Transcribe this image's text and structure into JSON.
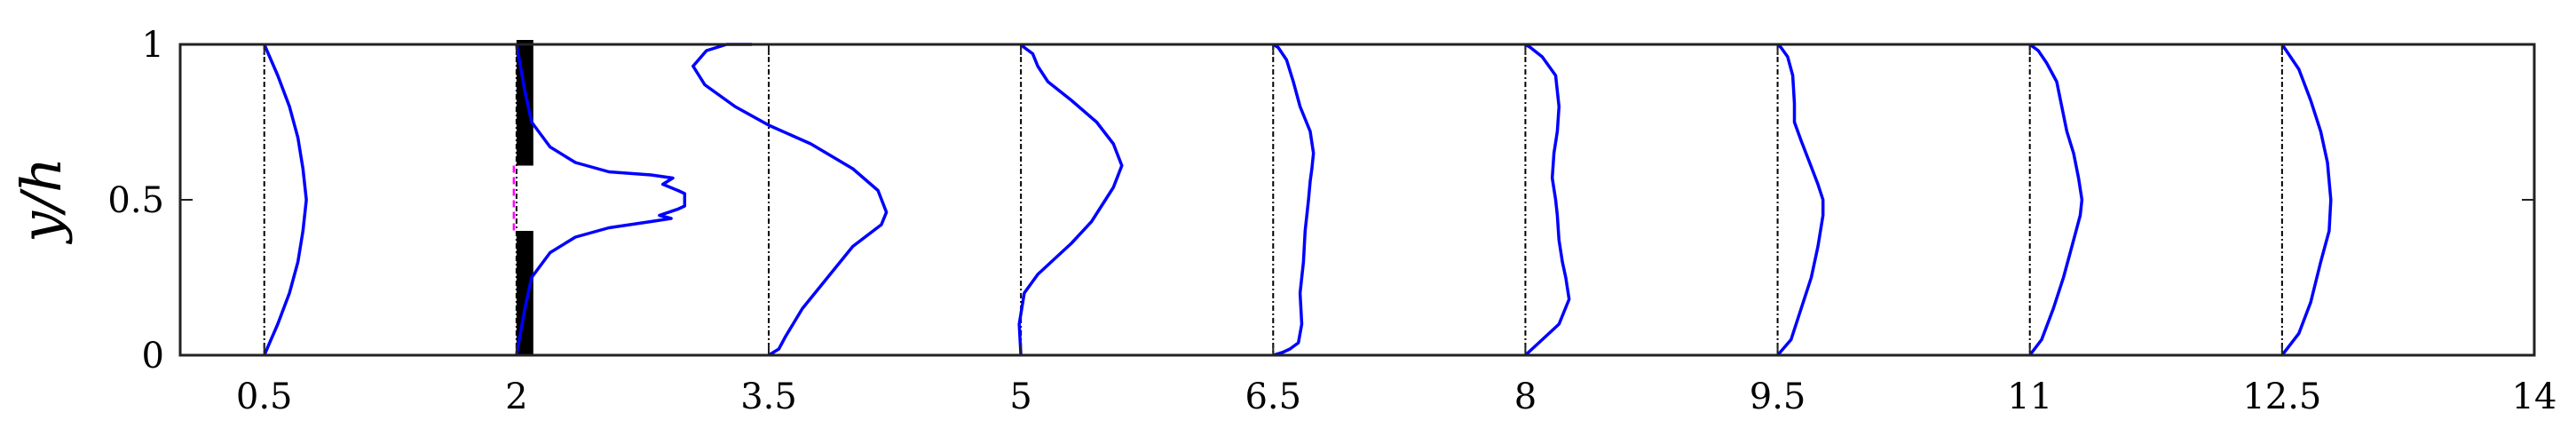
{
  "chart_data": {
    "type": "line",
    "title": "",
    "xlabel": "",
    "ylabel": "y/h",
    "xlim": [
      0,
      14
    ],
    "ylim": [
      0,
      1
    ],
    "xticks": [
      "0.5",
      "2",
      "3.5",
      "5",
      "6.5",
      "8",
      "9.5",
      "11",
      "12.5",
      "14"
    ],
    "yticks": [
      "0",
      "0.5",
      "1"
    ],
    "grid": false,
    "legend": "none",
    "colors": {
      "profile": "#0000ff",
      "reference": "#000000",
      "gap": "#ff00ff",
      "obstacle": "#000000"
    },
    "reference_lines_x": [
      0.5,
      2,
      3.5,
      5,
      6.5,
      8,
      9.5,
      11,
      12.5
    ],
    "obstacle": {
      "x": [
        2.0,
        2.1
      ],
      "lower_block_y": [
        0,
        0.4
      ],
      "upper_block_y": [
        0.61,
        1
      ],
      "gap_y": [
        0.4,
        0.61
      ]
    },
    "series": [
      {
        "station": "0.5",
        "points": [
          [
            0.5,
            0
          ],
          [
            0.58,
            0.1
          ],
          [
            0.65,
            0.2
          ],
          [
            0.7,
            0.3
          ],
          [
            0.73,
            0.4
          ],
          [
            0.75,
            0.5
          ],
          [
            0.73,
            0.6
          ],
          [
            0.7,
            0.7
          ],
          [
            0.65,
            0.8
          ],
          [
            0.58,
            0.9
          ],
          [
            0.5,
            1
          ]
        ]
      },
      {
        "station": "2",
        "points": [
          [
            2.0,
            0
          ],
          [
            2.05,
            0.15
          ],
          [
            2.09,
            0.25
          ],
          [
            2.2,
            0.33
          ],
          [
            2.35,
            0.38
          ],
          [
            2.55,
            0.41
          ],
          [
            2.8,
            0.43
          ],
          [
            2.92,
            0.44
          ],
          [
            2.85,
            0.45
          ],
          [
            2.96,
            0.47
          ],
          [
            3.0,
            0.48
          ],
          [
            3.0,
            0.5
          ],
          [
            3.0,
            0.52
          ],
          [
            2.96,
            0.53
          ],
          [
            2.87,
            0.55
          ],
          [
            2.93,
            0.57
          ],
          [
            2.8,
            0.58
          ],
          [
            2.55,
            0.59
          ],
          [
            2.35,
            0.62
          ],
          [
            2.2,
            0.67
          ],
          [
            2.09,
            0.75
          ],
          [
            2.05,
            0.85
          ],
          [
            2.0,
            1
          ]
        ]
      },
      {
        "station": "3.5",
        "points": [
          [
            3.5,
            0
          ],
          [
            3.56,
            0.02
          ],
          [
            3.6,
            0.06
          ],
          [
            3.7,
            0.15
          ],
          [
            3.85,
            0.25
          ],
          [
            4.0,
            0.35
          ],
          [
            4.17,
            0.42
          ],
          [
            4.2,
            0.46
          ],
          [
            4.15,
            0.53
          ],
          [
            4.0,
            0.6
          ],
          [
            3.75,
            0.68
          ],
          [
            3.5,
            0.74
          ],
          [
            3.3,
            0.8
          ],
          [
            3.12,
            0.87
          ],
          [
            3.05,
            0.93
          ],
          [
            3.13,
            0.98
          ],
          [
            3.25,
            1.0
          ],
          [
            3.4,
            1.0
          ]
        ]
      },
      {
        "station": "5",
        "points": [
          [
            5.0,
            0
          ],
          [
            4.99,
            0.1
          ],
          [
            5.02,
            0.2
          ],
          [
            5.1,
            0.26
          ],
          [
            5.2,
            0.31
          ],
          [
            5.3,
            0.36
          ],
          [
            5.42,
            0.43
          ],
          [
            5.55,
            0.54
          ],
          [
            5.6,
            0.61
          ],
          [
            5.55,
            0.68
          ],
          [
            5.45,
            0.75
          ],
          [
            5.3,
            0.82
          ],
          [
            5.16,
            0.88
          ],
          [
            5.1,
            0.93
          ],
          [
            5.07,
            0.97
          ],
          [
            5.02,
            0.99
          ],
          [
            5.0,
            1.0
          ]
        ]
      },
      {
        "station": "6.5",
        "points": [
          [
            6.5,
            0
          ],
          [
            6.56,
            0.01
          ],
          [
            6.6,
            0.02
          ],
          [
            6.65,
            0.04
          ],
          [
            6.67,
            0.1
          ],
          [
            6.66,
            0.2
          ],
          [
            6.68,
            0.3
          ],
          [
            6.69,
            0.4
          ],
          [
            6.7,
            0.45
          ],
          [
            6.71,
            0.5
          ],
          [
            6.72,
            0.56
          ],
          [
            6.73,
            0.6
          ],
          [
            6.74,
            0.65
          ],
          [
            6.72,
            0.72
          ],
          [
            6.66,
            0.8
          ],
          [
            6.62,
            0.88
          ],
          [
            6.58,
            0.95
          ],
          [
            6.53,
            0.99
          ],
          [
            6.5,
            1.0
          ]
        ]
      },
      {
        "station": "8",
        "points": [
          [
            8.0,
            0
          ],
          [
            8.1,
            0.05
          ],
          [
            8.2,
            0.1
          ],
          [
            8.26,
            0.18
          ],
          [
            8.24,
            0.25
          ],
          [
            8.22,
            0.3
          ],
          [
            8.2,
            0.37
          ],
          [
            8.19,
            0.45
          ],
          [
            8.18,
            0.5
          ],
          [
            8.16,
            0.57
          ],
          [
            8.17,
            0.65
          ],
          [
            8.19,
            0.72
          ],
          [
            8.2,
            0.8
          ],
          [
            8.18,
            0.9
          ],
          [
            8.1,
            0.96
          ],
          [
            8.03,
            0.99
          ],
          [
            8.0,
            1.0
          ]
        ]
      },
      {
        "station": "9.5",
        "points": [
          [
            9.5,
            0
          ],
          [
            9.58,
            0.05
          ],
          [
            9.64,
            0.15
          ],
          [
            9.7,
            0.25
          ],
          [
            9.74,
            0.35
          ],
          [
            9.77,
            0.45
          ],
          [
            9.77,
            0.5
          ],
          [
            9.74,
            0.55
          ],
          [
            9.69,
            0.62
          ],
          [
            9.64,
            0.69
          ],
          [
            9.6,
            0.75
          ],
          [
            9.6,
            0.81
          ],
          [
            9.59,
            0.9
          ],
          [
            9.56,
            0.96
          ],
          [
            9.52,
            0.99
          ],
          [
            9.5,
            1.0
          ]
        ]
      },
      {
        "station": "11",
        "points": [
          [
            11.0,
            0
          ],
          [
            11.07,
            0.05
          ],
          [
            11.14,
            0.15
          ],
          [
            11.2,
            0.25
          ],
          [
            11.25,
            0.35
          ],
          [
            11.3,
            0.45
          ],
          [
            11.31,
            0.5
          ],
          [
            11.29,
            0.57
          ],
          [
            11.26,
            0.65
          ],
          [
            11.22,
            0.72
          ],
          [
            11.19,
            0.8
          ],
          [
            11.16,
            0.88
          ],
          [
            11.1,
            0.94
          ],
          [
            11.05,
            0.98
          ],
          [
            11.0,
            1.0
          ]
        ]
      },
      {
        "station": "12.5",
        "points": [
          [
            12.5,
            0
          ],
          [
            12.6,
            0.07
          ],
          [
            12.67,
            0.17
          ],
          [
            12.73,
            0.3
          ],
          [
            12.78,
            0.4
          ],
          [
            12.79,
            0.5
          ],
          [
            12.77,
            0.62
          ],
          [
            12.73,
            0.72
          ],
          [
            12.67,
            0.82
          ],
          [
            12.6,
            0.92
          ],
          [
            12.5,
            1.0
          ]
        ]
      }
    ]
  }
}
